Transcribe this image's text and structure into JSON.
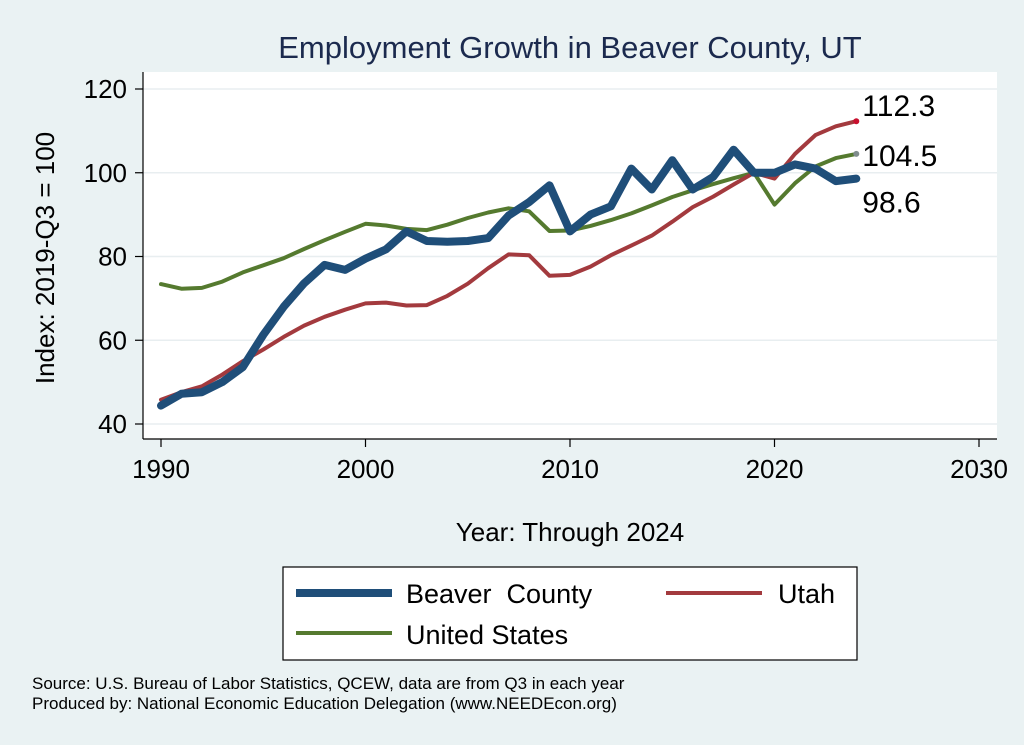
{
  "chart_data": {
    "type": "line",
    "title": "Employment Growth in Beaver County, UT",
    "xlabel": "Year: Through 2024",
    "ylabel": "Index: 2019-Q3 = 100",
    "xlim": [
      1990,
      2030
    ],
    "ylim": [
      40,
      120
    ],
    "x_ticks": [
      1990,
      2000,
      2010,
      2020,
      2030
    ],
    "y_ticks": [
      40,
      60,
      80,
      100,
      120
    ],
    "grid": "horizontal",
    "legend_position": "bottom",
    "x": [
      1990,
      1991,
      1992,
      1993,
      1994,
      1995,
      1996,
      1997,
      1998,
      1999,
      2000,
      2001,
      2002,
      2003,
      2004,
      2005,
      2006,
      2007,
      2008,
      2009,
      2010,
      2011,
      2012,
      2013,
      2014,
      2015,
      2016,
      2017,
      2018,
      2019,
      2020,
      2021,
      2022,
      2023,
      2024
    ],
    "series": [
      {
        "name": "Beaver  County",
        "color": "#1f4e79",
        "width": 8,
        "values": [
          44.4,
          47.2,
          47.6,
          50.0,
          53.6,
          61.3,
          68.0,
          73.6,
          78.0,
          76.8,
          79.5,
          81.7,
          86.0,
          83.7,
          83.5,
          83.7,
          84.4,
          89.8,
          93.0,
          97.0,
          86.0,
          90.0,
          92.0,
          101.0,
          96.0,
          103.0,
          96.0,
          99.0,
          105.5,
          100.0,
          100.0,
          102.0,
          101.0,
          98.0,
          98.6
        ],
        "end_label": "98.6"
      },
      {
        "name": "Utah",
        "color": "#a33a3e",
        "width": 4,
        "values": [
          45.8,
          47.6,
          49.0,
          51.8,
          55.0,
          57.8,
          60.8,
          63.5,
          65.6,
          67.3,
          68.8,
          69.0,
          68.3,
          68.4,
          70.6,
          73.5,
          77.2,
          80.5,
          80.3,
          75.4,
          75.6,
          77.6,
          80.3,
          82.6,
          85.0,
          88.3,
          91.8,
          94.3,
          97.2,
          100.0,
          98.6,
          104.5,
          109.0,
          111.1,
          112.3
        ],
        "end_label": "112.3"
      },
      {
        "name": "United States",
        "color": "#557a2f",
        "width": 4,
        "values": [
          73.4,
          72.3,
          72.5,
          74.0,
          76.2,
          77.9,
          79.6,
          81.8,
          83.9,
          85.9,
          87.8,
          87.4,
          86.6,
          86.3,
          87.6,
          89.2,
          90.5,
          91.5,
          90.8,
          86.1,
          86.2,
          87.3,
          88.7,
          90.3,
          92.2,
          94.2,
          95.8,
          97.3,
          98.7,
          100.0,
          92.4,
          97.5,
          101.5,
          103.5,
          104.5
        ],
        "end_label": "104.5"
      }
    ],
    "source_note": "Source: U.S. Bureau of Labor Statistics, QCEW, data are from Q3 in each year",
    "produced_by": "Produced by: National Economic Education Delegation (www.NEEDEcon.org)"
  }
}
